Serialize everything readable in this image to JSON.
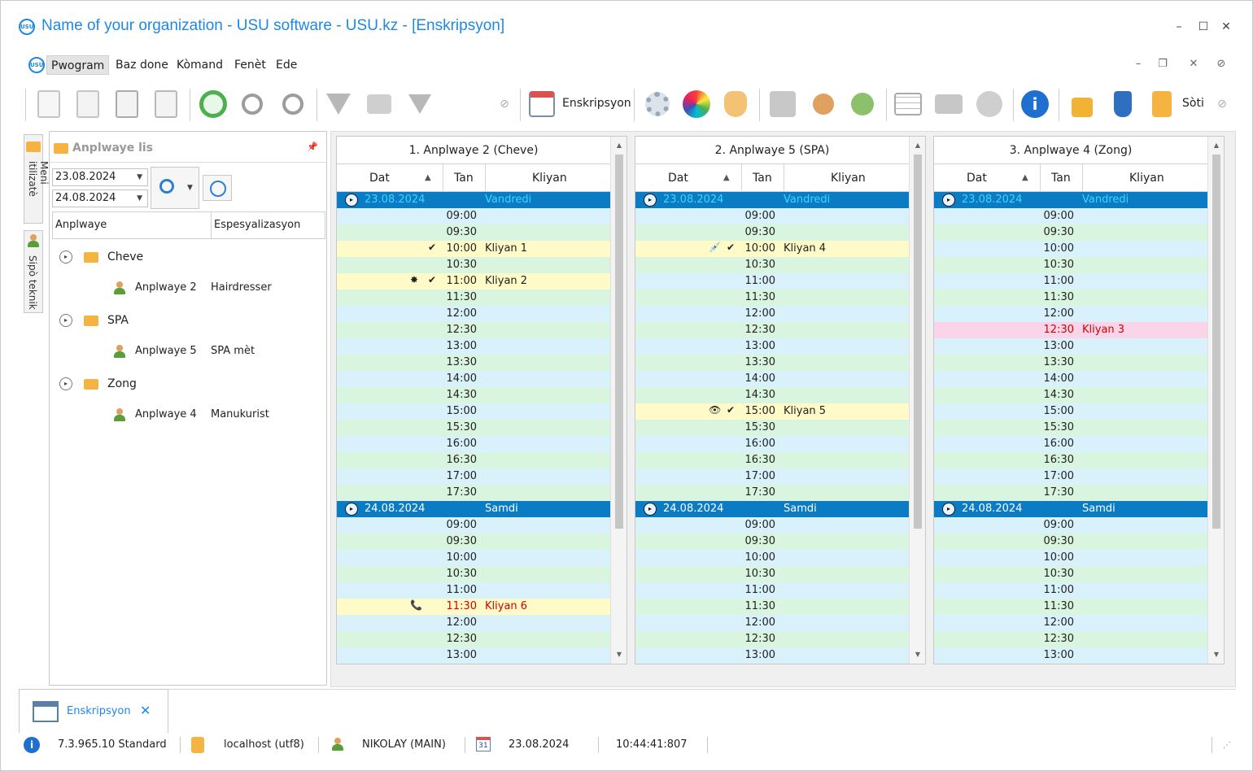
{
  "window": {
    "title": "Name of your organization - USU software - USU.kz - [Enskripsyon]",
    "logo_text": "USU",
    "controls": [
      "minimize-icon",
      "maximize-icon",
      "close-icon"
    ]
  },
  "menu": {
    "items": [
      "Pwogram",
      "Baz done",
      "Kòmand",
      "Fenèt",
      "Ede"
    ],
    "active": "Pwogram"
  },
  "toolbar": {
    "enskripsyon_label": "Enskripsyon",
    "soti_label": "Sòti"
  },
  "side_tabs": [
    "Meni itilizatè",
    "Sipò teknik"
  ],
  "employee_panel": {
    "title": "Anplwaye lis",
    "date_from": "23.08.2024",
    "date_to": "24.08.2024",
    "col_employee": "Anplwaye",
    "col_specialization": "Espesyalizasyon",
    "groups": [
      {
        "name": "Cheve",
        "employee": "Anplwaye 2",
        "specialization": "Hairdresser"
      },
      {
        "name": "SPA",
        "employee": "Anplwaye 5",
        "specialization": "SPA mèt"
      },
      {
        "name": "Zong",
        "employee": "Anplwaye 4",
        "specialization": "Manukurist"
      }
    ]
  },
  "schedule_columns": {
    "date": "Dat",
    "time": "Tan",
    "client": "Kliyan"
  },
  "schedules": [
    {
      "title": "1. Anplwaye 2 (Cheve)",
      "rows": [
        {
          "type": "date",
          "date": "23.08.2024",
          "day": "Vandredi",
          "selected": true
        },
        {
          "time": "09:00"
        },
        {
          "time": "09:30"
        },
        {
          "time": "10:00",
          "client": "Kliyan 1",
          "check": true
        },
        {
          "time": "10:30"
        },
        {
          "time": "11:00",
          "client": "Kliyan 2",
          "check": true,
          "mark": "✸"
        },
        {
          "time": "11:30"
        },
        {
          "time": "12:00"
        },
        {
          "time": "12:30"
        },
        {
          "time": "13:00"
        },
        {
          "time": "13:30"
        },
        {
          "time": "14:00"
        },
        {
          "time": "14:30"
        },
        {
          "time": "15:00"
        },
        {
          "time": "15:30"
        },
        {
          "time": "16:00"
        },
        {
          "time": "16:30"
        },
        {
          "time": "17:00"
        },
        {
          "time": "17:30"
        },
        {
          "type": "date",
          "date": "24.08.2024",
          "day": "Samdi"
        },
        {
          "time": "09:00"
        },
        {
          "time": "09:30"
        },
        {
          "time": "10:00"
        },
        {
          "time": "10:30"
        },
        {
          "time": "11:00"
        },
        {
          "time": "11:30",
          "client": "Kliyan 6",
          "red": true,
          "mark": "📞"
        },
        {
          "time": "12:00"
        },
        {
          "time": "12:30"
        },
        {
          "time": "13:00"
        }
      ]
    },
    {
      "title": "2. Anplwaye 5 (SPA)",
      "rows": [
        {
          "type": "date",
          "date": "23.08.2024",
          "day": "Vandredi",
          "selected": true
        },
        {
          "time": "09:00"
        },
        {
          "time": "09:30"
        },
        {
          "time": "10:00",
          "client": "Kliyan 4",
          "check": true,
          "mark": "💉"
        },
        {
          "time": "10:30"
        },
        {
          "time": "11:00"
        },
        {
          "time": "11:30"
        },
        {
          "time": "12:00"
        },
        {
          "time": "12:30"
        },
        {
          "time": "13:00"
        },
        {
          "time": "13:30"
        },
        {
          "time": "14:00"
        },
        {
          "time": "14:30"
        },
        {
          "time": "15:00",
          "client": "Kliyan 5",
          "check": true,
          "mark": "👁"
        },
        {
          "time": "15:30"
        },
        {
          "time": "16:00"
        },
        {
          "time": "16:30"
        },
        {
          "time": "17:00"
        },
        {
          "time": "17:30"
        },
        {
          "type": "date",
          "date": "24.08.2024",
          "day": "Samdi"
        },
        {
          "time": "09:00"
        },
        {
          "time": "09:30"
        },
        {
          "time": "10:00"
        },
        {
          "time": "10:30"
        },
        {
          "time": "11:00"
        },
        {
          "time": "11:30"
        },
        {
          "time": "12:00"
        },
        {
          "time": "12:30"
        },
        {
          "time": "13:00"
        }
      ]
    },
    {
      "title": "3. Anplwaye 4 (Zong)",
      "rows": [
        {
          "type": "date",
          "date": "23.08.2024",
          "day": "Vandredi",
          "selected": true
        },
        {
          "time": "09:00"
        },
        {
          "time": "09:30"
        },
        {
          "time": "10:00"
        },
        {
          "time": "10:30"
        },
        {
          "time": "11:00"
        },
        {
          "time": "11:30"
        },
        {
          "time": "12:00"
        },
        {
          "time": "12:30",
          "client": "Kliyan 3",
          "red": true,
          "pink": true
        },
        {
          "time": "13:00"
        },
        {
          "time": "13:30"
        },
        {
          "time": "14:00"
        },
        {
          "time": "14:30"
        },
        {
          "time": "15:00"
        },
        {
          "time": "15:30"
        },
        {
          "time": "16:00"
        },
        {
          "time": "16:30"
        },
        {
          "time": "17:00"
        },
        {
          "time": "17:30"
        },
        {
          "type": "date",
          "date": "24.08.2024",
          "day": "Samdi"
        },
        {
          "time": "09:00"
        },
        {
          "time": "09:30"
        },
        {
          "time": "10:00"
        },
        {
          "time": "10:30"
        },
        {
          "time": "11:00"
        },
        {
          "time": "11:30"
        },
        {
          "time": "12:00"
        },
        {
          "time": "12:30"
        },
        {
          "time": "13:00"
        }
      ]
    }
  ],
  "doc_tab": {
    "label": "Enskripsyon"
  },
  "status": {
    "version": "7.3.965.10 Standard",
    "db": "localhost (utf8)",
    "user": "NIKOLAY (MAIN)",
    "date": "23.08.2024",
    "time": "10:44:41:807",
    "calendar_day": "31"
  },
  "colors": {
    "accent": "#1e88e5",
    "date_row": "#0b7bc4",
    "row_blue": "#d9f1fb",
    "row_green": "#daf5df",
    "booked": "#fffbc8",
    "pink": "#fad4e8",
    "red_text": "#d40000"
  }
}
